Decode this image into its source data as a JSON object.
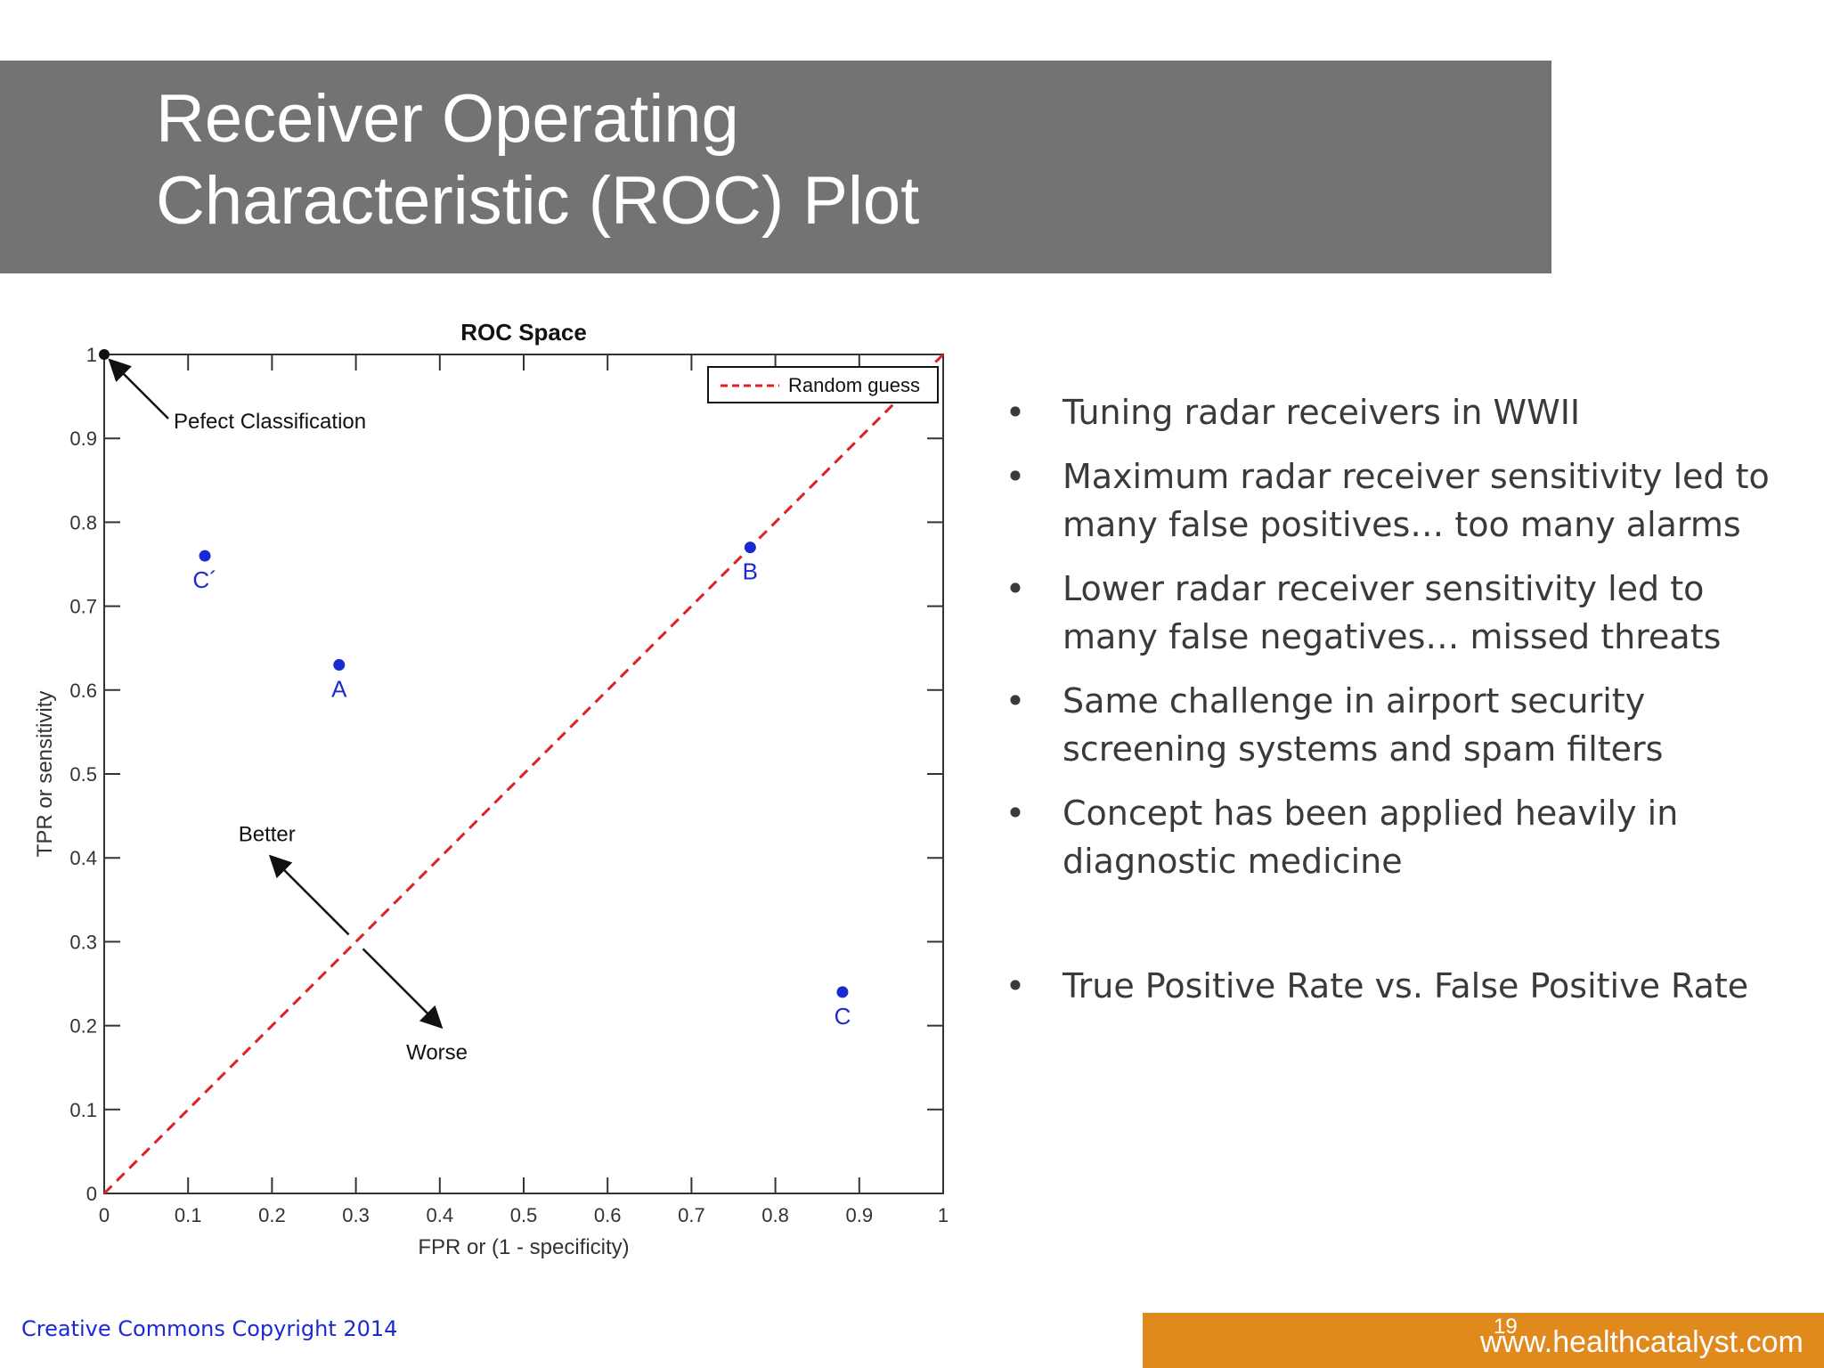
{
  "slide": {
    "title_line1": "Receiver Operating",
    "title_line2": "Characteristic (ROC) Plot",
    "bullets": [
      "Tuning radar receivers in WWII",
      "Maximum radar receiver sensitivity led to many false positives… too many alarms",
      "Lower radar receiver sensitivity led to many false negatives… missed threats",
      "Same challenge in airport security screening systems and spam filters",
      "Concept has been applied heavily in diagnostic medicine",
      "True Positive Rate vs. False Positive Rate"
    ],
    "bullet_symbol": "•",
    "footer_copyright": "Creative Commons Copyright 2014",
    "page_number": "19",
    "footer_url": "www.healthcatalyst.com",
    "colors": {
      "title_bar": "#737373",
      "footer_bar": "#e08a1e",
      "copyright_text": "#1a2ad0",
      "point_color": "#1a2ad0",
      "random_guess_line": "#e02020"
    }
  },
  "chart_data": {
    "type": "scatter",
    "title": "ROC Space",
    "xlabel": "FPR or (1 - specificity)",
    "ylabel": "TPR or sensitivity",
    "xlim": [
      0,
      1
    ],
    "ylim": [
      0,
      1
    ],
    "xticks": [
      "0",
      "0.1",
      "0.2",
      "0.3",
      "0.4",
      "0.5",
      "0.6",
      "0.7",
      "0.8",
      "0.9",
      "1"
    ],
    "yticks": [
      "0",
      "0.1",
      "0.2",
      "0.3",
      "0.4",
      "0.5",
      "0.6",
      "0.7",
      "0.8",
      "0.9",
      "1"
    ],
    "grid": false,
    "legend": {
      "entries": [
        "Random guess"
      ],
      "placement": "top-right"
    },
    "series": [
      {
        "name": "Random guess",
        "type": "line",
        "style": "dashed",
        "x": [
          0,
          1
        ],
        "y": [
          0,
          1
        ]
      }
    ],
    "points": [
      {
        "label": "C´",
        "x": 0.12,
        "y": 0.76
      },
      {
        "label": "A",
        "x": 0.28,
        "y": 0.63
      },
      {
        "label": "B",
        "x": 0.77,
        "y": 0.77
      },
      {
        "label": "C",
        "x": 0.88,
        "y": 0.24
      }
    ],
    "perfect_point": {
      "x": 0,
      "y": 1
    },
    "annotations": [
      {
        "text": "Pefect Classification"
      },
      {
        "text": "Better"
      },
      {
        "text": "Worse"
      }
    ]
  }
}
